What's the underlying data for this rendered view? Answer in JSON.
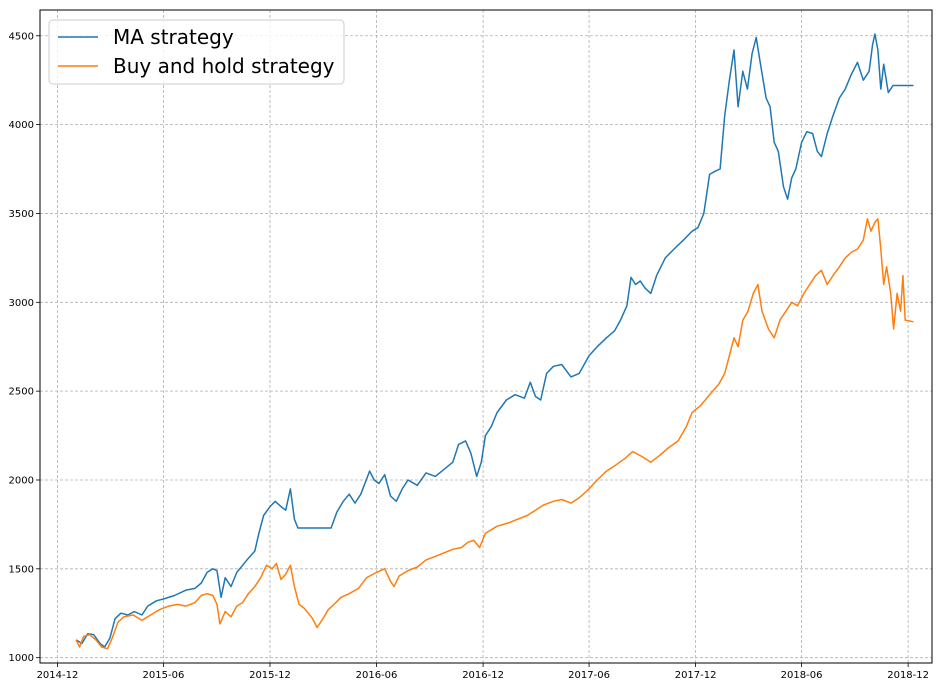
{
  "chart_data": {
    "type": "line",
    "title": "",
    "xlabel": "",
    "ylabel": "",
    "x_ticks": [
      "2014-12",
      "2015-06",
      "2015-12",
      "2016-06",
      "2016-12",
      "2017-06",
      "2017-12",
      "2018-06",
      "2018-12"
    ],
    "y_ticks": [
      "1000",
      "1500",
      "2000",
      "2500",
      "3000",
      "3500",
      "4000",
      "4500"
    ],
    "xlim": [
      "2014-11-01",
      "2019-01-11"
    ],
    "ylim": [
      970,
      4645
    ],
    "grid": true,
    "legend_position": "top-left",
    "series": [
      {
        "name": "MA strategy",
        "color": "#1f77b4",
        "points": [
          [
            "2015-01-02",
            1100
          ],
          [
            "2015-01-12",
            1080
          ],
          [
            "2015-01-22",
            1135
          ],
          [
            "2015-02-01",
            1130
          ],
          [
            "2015-02-12",
            1080
          ],
          [
            "2015-02-20",
            1060
          ],
          [
            "2015-03-01",
            1110
          ],
          [
            "2015-03-10",
            1220
          ],
          [
            "2015-03-20",
            1250
          ],
          [
            "2015-04-01",
            1240
          ],
          [
            "2015-04-12",
            1260
          ],
          [
            "2015-04-25",
            1240
          ],
          [
            "2015-05-05",
            1290
          ],
          [
            "2015-05-20",
            1320
          ],
          [
            "2015-06-01",
            1330
          ],
          [
            "2015-06-20",
            1350
          ],
          [
            "2015-07-10",
            1380
          ],
          [
            "2015-07-25",
            1390
          ],
          [
            "2015-08-05",
            1420
          ],
          [
            "2015-08-15",
            1480
          ],
          [
            "2015-08-25",
            1500
          ],
          [
            "2015-09-01",
            1490
          ],
          [
            "2015-09-08",
            1340
          ],
          [
            "2015-09-15",
            1450
          ],
          [
            "2015-09-25",
            1400
          ],
          [
            "2015-10-05",
            1480
          ],
          [
            "2015-10-15",
            1520
          ],
          [
            "2015-10-25",
            1560
          ],
          [
            "2015-11-05",
            1600
          ],
          [
            "2015-11-12",
            1700
          ],
          [
            "2015-11-20",
            1800
          ],
          [
            "2015-12-01",
            1850
          ],
          [
            "2015-12-10",
            1880
          ],
          [
            "2015-12-20",
            1850
          ],
          [
            "2015-12-28",
            1830
          ],
          [
            "2016-01-05",
            1950
          ],
          [
            "2016-01-12",
            1780
          ],
          [
            "2016-01-18",
            1730
          ],
          [
            "2016-02-01",
            1730
          ],
          [
            "2016-03-01",
            1730
          ],
          [
            "2016-03-15",
            1730
          ],
          [
            "2016-03-25",
            1820
          ],
          [
            "2016-04-05",
            1880
          ],
          [
            "2016-04-15",
            1920
          ],
          [
            "2016-04-25",
            1870
          ],
          [
            "2016-05-05",
            1920
          ],
          [
            "2016-05-20",
            2050
          ],
          [
            "2016-05-28",
            2000
          ],
          [
            "2016-06-05",
            1980
          ],
          [
            "2016-06-15",
            2030
          ],
          [
            "2016-06-25",
            1910
          ],
          [
            "2016-07-05",
            1880
          ],
          [
            "2016-07-15",
            1950
          ],
          [
            "2016-07-25",
            2000
          ],
          [
            "2016-08-10",
            1970
          ],
          [
            "2016-08-25",
            2040
          ],
          [
            "2016-09-10",
            2020
          ],
          [
            "2016-09-25",
            2060
          ],
          [
            "2016-10-10",
            2100
          ],
          [
            "2016-10-20",
            2200
          ],
          [
            "2016-11-01",
            2220
          ],
          [
            "2016-11-10",
            2150
          ],
          [
            "2016-11-20",
            2020
          ],
          [
            "2016-11-28",
            2100
          ],
          [
            "2016-12-05",
            2250
          ],
          [
            "2016-12-15",
            2300
          ],
          [
            "2016-12-25",
            2380
          ],
          [
            "2017-01-10",
            2450
          ],
          [
            "2017-01-25",
            2480
          ],
          [
            "2017-02-10",
            2460
          ],
          [
            "2017-02-20",
            2550
          ],
          [
            "2017-03-01",
            2470
          ],
          [
            "2017-03-10",
            2450
          ],
          [
            "2017-03-20",
            2600
          ],
          [
            "2017-04-01",
            2640
          ],
          [
            "2017-04-15",
            2650
          ],
          [
            "2017-05-01",
            2580
          ],
          [
            "2017-05-15",
            2600
          ],
          [
            "2017-06-01",
            2700
          ],
          [
            "2017-06-15",
            2750
          ],
          [
            "2017-07-01",
            2800
          ],
          [
            "2017-07-15",
            2840
          ],
          [
            "2017-07-25",
            2900
          ],
          [
            "2017-08-05",
            2980
          ],
          [
            "2017-08-12",
            3140
          ],
          [
            "2017-08-20",
            3100
          ],
          [
            "2017-08-28",
            3120
          ],
          [
            "2017-09-05",
            3080
          ],
          [
            "2017-09-15",
            3050
          ],
          [
            "2017-09-25",
            3150
          ],
          [
            "2017-10-10",
            3250
          ],
          [
            "2017-10-25",
            3300
          ],
          [
            "2017-11-10",
            3350
          ],
          [
            "2017-11-25",
            3400
          ],
          [
            "2017-12-05",
            3420
          ],
          [
            "2017-12-15",
            3500
          ],
          [
            "2017-12-25",
            3720
          ],
          [
            "2018-01-05",
            3740
          ],
          [
            "2018-01-12",
            3750
          ],
          [
            "2018-01-20",
            4050
          ],
          [
            "2018-01-28",
            4250
          ],
          [
            "2018-02-05",
            4420
          ],
          [
            "2018-02-12",
            4100
          ],
          [
            "2018-02-20",
            4300
          ],
          [
            "2018-02-28",
            4200
          ],
          [
            "2018-03-08",
            4400
          ],
          [
            "2018-03-15",
            4490
          ],
          [
            "2018-03-22",
            4350
          ],
          [
            "2018-04-01",
            4150
          ],
          [
            "2018-04-08",
            4100
          ],
          [
            "2018-04-15",
            3900
          ],
          [
            "2018-04-22",
            3850
          ],
          [
            "2018-05-01",
            3650
          ],
          [
            "2018-05-08",
            3580
          ],
          [
            "2018-05-15",
            3700
          ],
          [
            "2018-05-22",
            3750
          ],
          [
            "2018-06-01",
            3900
          ],
          [
            "2018-06-10",
            3960
          ],
          [
            "2018-06-20",
            3950
          ],
          [
            "2018-06-28",
            3850
          ],
          [
            "2018-07-05",
            3820
          ],
          [
            "2018-07-15",
            3950
          ],
          [
            "2018-07-25",
            4050
          ],
          [
            "2018-08-05",
            4150
          ],
          [
            "2018-08-15",
            4200
          ],
          [
            "2018-08-25",
            4280
          ],
          [
            "2018-09-05",
            4350
          ],
          [
            "2018-09-15",
            4250
          ],
          [
            "2018-09-25",
            4300
          ],
          [
            "2018-10-01",
            4450
          ],
          [
            "2018-10-05",
            4510
          ],
          [
            "2018-10-10",
            4420
          ],
          [
            "2018-10-15",
            4200
          ],
          [
            "2018-10-20",
            4340
          ],
          [
            "2018-10-28",
            4180
          ],
          [
            "2018-11-05",
            4220
          ],
          [
            "2018-11-15",
            4220
          ],
          [
            "2018-12-10",
            4220
          ]
        ]
      },
      {
        "name": "Buy and hold strategy",
        "color": "#ff7f0e",
        "points": [
          [
            "2015-01-02",
            1100
          ],
          [
            "2015-01-08",
            1060
          ],
          [
            "2015-01-15",
            1120
          ],
          [
            "2015-01-25",
            1130
          ],
          [
            "2015-02-05",
            1100
          ],
          [
            "2015-02-15",
            1060
          ],
          [
            "2015-02-25",
            1050
          ],
          [
            "2015-03-05",
            1110
          ],
          [
            "2015-03-15",
            1200
          ],
          [
            "2015-03-25",
            1230
          ],
          [
            "2015-04-10",
            1240
          ],
          [
            "2015-04-25",
            1210
          ],
          [
            "2015-05-10",
            1240
          ],
          [
            "2015-05-25",
            1270
          ],
          [
            "2015-06-10",
            1290
          ],
          [
            "2015-06-25",
            1300
          ],
          [
            "2015-07-10",
            1290
          ],
          [
            "2015-07-25",
            1310
          ],
          [
            "2015-08-05",
            1350
          ],
          [
            "2015-08-15",
            1360
          ],
          [
            "2015-08-25",
            1350
          ],
          [
            "2015-09-01",
            1300
          ],
          [
            "2015-09-06",
            1190
          ],
          [
            "2015-09-15",
            1260
          ],
          [
            "2015-09-25",
            1230
          ],
          [
            "2015-10-05",
            1290
          ],
          [
            "2015-10-15",
            1310
          ],
          [
            "2015-10-25",
            1360
          ],
          [
            "2015-11-05",
            1400
          ],
          [
            "2015-11-15",
            1450
          ],
          [
            "2015-11-25",
            1520
          ],
          [
            "2015-12-05",
            1500
          ],
          [
            "2015-12-12",
            1530
          ],
          [
            "2015-12-20",
            1440
          ],
          [
            "2015-12-28",
            1470
          ],
          [
            "2016-01-05",
            1520
          ],
          [
            "2016-01-12",
            1400
          ],
          [
            "2016-01-20",
            1300
          ],
          [
            "2016-01-28",
            1280
          ],
          [
            "2016-02-05",
            1250
          ],
          [
            "2016-02-12",
            1220
          ],
          [
            "2016-02-20",
            1170
          ],
          [
            "2016-03-01",
            1220
          ],
          [
            "2016-03-10",
            1270
          ],
          [
            "2016-03-20",
            1300
          ],
          [
            "2016-04-01",
            1340
          ],
          [
            "2016-04-15",
            1360
          ],
          [
            "2016-05-01",
            1390
          ],
          [
            "2016-05-15",
            1450
          ],
          [
            "2016-06-01",
            1480
          ],
          [
            "2016-06-15",
            1500
          ],
          [
            "2016-06-25",
            1430
          ],
          [
            "2016-07-01",
            1400
          ],
          [
            "2016-07-10",
            1460
          ],
          [
            "2016-07-25",
            1490
          ],
          [
            "2016-08-10",
            1510
          ],
          [
            "2016-08-25",
            1550
          ],
          [
            "2016-09-10",
            1570
          ],
          [
            "2016-09-25",
            1590
          ],
          [
            "2016-10-10",
            1610
          ],
          [
            "2016-10-25",
            1620
          ],
          [
            "2016-11-05",
            1650
          ],
          [
            "2016-11-15",
            1660
          ],
          [
            "2016-11-25",
            1620
          ],
          [
            "2016-12-05",
            1700
          ],
          [
            "2016-12-15",
            1720
          ],
          [
            "2016-12-25",
            1740
          ],
          [
            "2017-01-15",
            1760
          ],
          [
            "2017-01-30",
            1780
          ],
          [
            "2017-02-15",
            1800
          ],
          [
            "2017-03-01",
            1830
          ],
          [
            "2017-03-15",
            1860
          ],
          [
            "2017-04-01",
            1880
          ],
          [
            "2017-04-15",
            1890
          ],
          [
            "2017-05-01",
            1870
          ],
          [
            "2017-05-15",
            1900
          ],
          [
            "2017-06-01",
            1950
          ],
          [
            "2017-06-15",
            2000
          ],
          [
            "2017-07-01",
            2050
          ],
          [
            "2017-07-15",
            2080
          ],
          [
            "2017-08-01",
            2120
          ],
          [
            "2017-08-15",
            2160
          ],
          [
            "2017-09-01",
            2130
          ],
          [
            "2017-09-15",
            2100
          ],
          [
            "2017-10-01",
            2140
          ],
          [
            "2017-10-15",
            2180
          ],
          [
            "2017-11-01",
            2220
          ],
          [
            "2017-11-15",
            2300
          ],
          [
            "2017-11-25",
            2380
          ],
          [
            "2017-12-10",
            2420
          ],
          [
            "2017-12-25",
            2480
          ],
          [
            "2018-01-10",
            2540
          ],
          [
            "2018-01-20",
            2600
          ],
          [
            "2018-01-28",
            2700
          ],
          [
            "2018-02-05",
            2800
          ],
          [
            "2018-02-12",
            2750
          ],
          [
            "2018-02-20",
            2900
          ],
          [
            "2018-03-01",
            2950
          ],
          [
            "2018-03-10",
            3050
          ],
          [
            "2018-03-18",
            3100
          ],
          [
            "2018-03-25",
            2950
          ],
          [
            "2018-04-05",
            2850
          ],
          [
            "2018-04-15",
            2800
          ],
          [
            "2018-04-25",
            2900
          ],
          [
            "2018-05-05",
            2950
          ],
          [
            "2018-05-15",
            3000
          ],
          [
            "2018-05-25",
            2980
          ],
          [
            "2018-06-05",
            3050
          ],
          [
            "2018-06-15",
            3100
          ],
          [
            "2018-06-25",
            3150
          ],
          [
            "2018-07-05",
            3180
          ],
          [
            "2018-07-15",
            3100
          ],
          [
            "2018-07-25",
            3150
          ],
          [
            "2018-08-05",
            3200
          ],
          [
            "2018-08-15",
            3250
          ],
          [
            "2018-08-25",
            3280
          ],
          [
            "2018-09-05",
            3300
          ],
          [
            "2018-09-15",
            3350
          ],
          [
            "2018-09-22",
            3470
          ],
          [
            "2018-09-28",
            3400
          ],
          [
            "2018-10-05",
            3450
          ],
          [
            "2018-10-10",
            3470
          ],
          [
            "2018-10-15",
            3300
          ],
          [
            "2018-10-20",
            3100
          ],
          [
            "2018-10-25",
            3200
          ],
          [
            "2018-11-01",
            3050
          ],
          [
            "2018-11-06",
            2850
          ],
          [
            "2018-11-12",
            3050
          ],
          [
            "2018-11-18",
            2950
          ],
          [
            "2018-11-22",
            3150
          ],
          [
            "2018-11-26",
            2900
          ],
          [
            "2018-12-10",
            2890
          ]
        ]
      }
    ]
  }
}
